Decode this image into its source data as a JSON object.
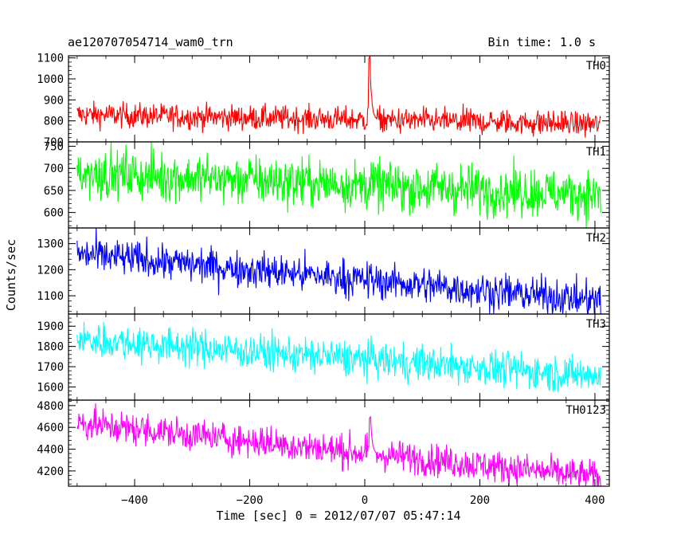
{
  "header": {
    "title": "ae120707054714_wam0_trn",
    "bin_time": "Bin time: 1.0 s"
  },
  "chart_data": {
    "type": "line",
    "title": "ae120707054714_wam0_trn",
    "subtitle": "Bin time: 1.0 s",
    "xlabel": "Time [sec] 0 = 2012/07/07 05:47:14",
    "ylabel": "Counts/sec",
    "xlim": [
      -515,
      425
    ],
    "x_ticks": [
      -400,
      -200,
      0,
      200,
      400
    ],
    "x_tick_labels": [
      "−400",
      "−200",
      "0",
      "200",
      "400"
    ],
    "x_range": [
      -500,
      410
    ],
    "grid": false,
    "panels": [
      {
        "name": "TH0",
        "color": "#ff0000",
        "ylim": [
          700,
          1110
        ],
        "yticks": [
          700,
          800,
          900,
          1000,
          1100
        ],
        "series_summary": {
          "start_mean": 830,
          "end_mean": 785,
          "noise_sd": 30
        },
        "burst": {
          "x": 7,
          "peak": 1110
        },
        "values_every_100s": [
          {
            "x": -500,
            "y": 832
          },
          {
            "x": -400,
            "y": 828
          },
          {
            "x": -300,
            "y": 824
          },
          {
            "x": -200,
            "y": 820
          },
          {
            "x": -100,
            "y": 812
          },
          {
            "x": 0,
            "y": 810
          },
          {
            "x": 10,
            "y": 1100
          },
          {
            "x": 100,
            "y": 800
          },
          {
            "x": 200,
            "y": 798
          },
          {
            "x": 300,
            "y": 790
          },
          {
            "x": 400,
            "y": 785
          }
        ]
      },
      {
        "name": "TH1",
        "color": "#00ff00",
        "ylim": [
          565,
          760
        ],
        "yticks": [
          600,
          650,
          700,
          750
        ],
        "series_summary": {
          "start_mean": 690,
          "end_mean": 640,
          "noise_sd": 28
        },
        "values_every_100s": [
          {
            "x": -500,
            "y": 690
          },
          {
            "x": -400,
            "y": 685
          },
          {
            "x": -300,
            "y": 680
          },
          {
            "x": -200,
            "y": 675
          },
          {
            "x": -100,
            "y": 668
          },
          {
            "x": 0,
            "y": 662
          },
          {
            "x": 100,
            "y": 657
          },
          {
            "x": 200,
            "y": 652
          },
          {
            "x": 300,
            "y": 646
          },
          {
            "x": 400,
            "y": 640
          }
        ]
      },
      {
        "name": "TH2",
        "color": "#0000ff",
        "ylim": [
          1030,
          1360
        ],
        "yticks": [
          1100,
          1200,
          1300
        ],
        "series_summary": {
          "start_mean": 1260,
          "end_mean": 1080,
          "noise_sd": 35
        },
        "values_every_100s": [
          {
            "x": -500,
            "y": 1262
          },
          {
            "x": -400,
            "y": 1240
          },
          {
            "x": -300,
            "y": 1215
          },
          {
            "x": -200,
            "y": 1195
          },
          {
            "x": -100,
            "y": 1175
          },
          {
            "x": 0,
            "y": 1150
          },
          {
            "x": 100,
            "y": 1130
          },
          {
            "x": 200,
            "y": 1112
          },
          {
            "x": 300,
            "y": 1095
          },
          {
            "x": 400,
            "y": 1080
          }
        ]
      },
      {
        "name": "TH3",
        "color": "#00ffff",
        "ylim": [
          1535,
          1960
        ],
        "yticks": [
          1600,
          1700,
          1800,
          1900
        ],
        "series_summary": {
          "start_mean": 1835,
          "end_mean": 1655,
          "noise_sd": 45
        },
        "values_every_100s": [
          {
            "x": -500,
            "y": 1835
          },
          {
            "x": -400,
            "y": 1815
          },
          {
            "x": -300,
            "y": 1795
          },
          {
            "x": -200,
            "y": 1775
          },
          {
            "x": -100,
            "y": 1755
          },
          {
            "x": 0,
            "y": 1735
          },
          {
            "x": 100,
            "y": 1715
          },
          {
            "x": 200,
            "y": 1695
          },
          {
            "x": 300,
            "y": 1675
          },
          {
            "x": 400,
            "y": 1655
          }
        ]
      },
      {
        "name": "TH0123",
        "color": "#ff00ff",
        "ylim": [
          4060,
          4850
        ],
        "yticks": [
          4200,
          4400,
          4600,
          4800
        ],
        "series_summary": {
          "start_mean": 4640,
          "end_mean": 4140,
          "noise_sd": 75
        },
        "burst": {
          "x": 8,
          "peak": 4700
        },
        "values_every_100s": [
          {
            "x": -500,
            "y": 4640
          },
          {
            "x": -400,
            "y": 4585
          },
          {
            "x": -300,
            "y": 4530
          },
          {
            "x": -200,
            "y": 4475
          },
          {
            "x": -100,
            "y": 4420
          },
          {
            "x": 0,
            "y": 4380
          },
          {
            "x": 10,
            "y": 4650
          },
          {
            "x": 100,
            "y": 4300
          },
          {
            "x": 200,
            "y": 4245
          },
          {
            "x": 300,
            "y": 4190
          },
          {
            "x": 400,
            "y": 4140
          }
        ]
      }
    ]
  }
}
